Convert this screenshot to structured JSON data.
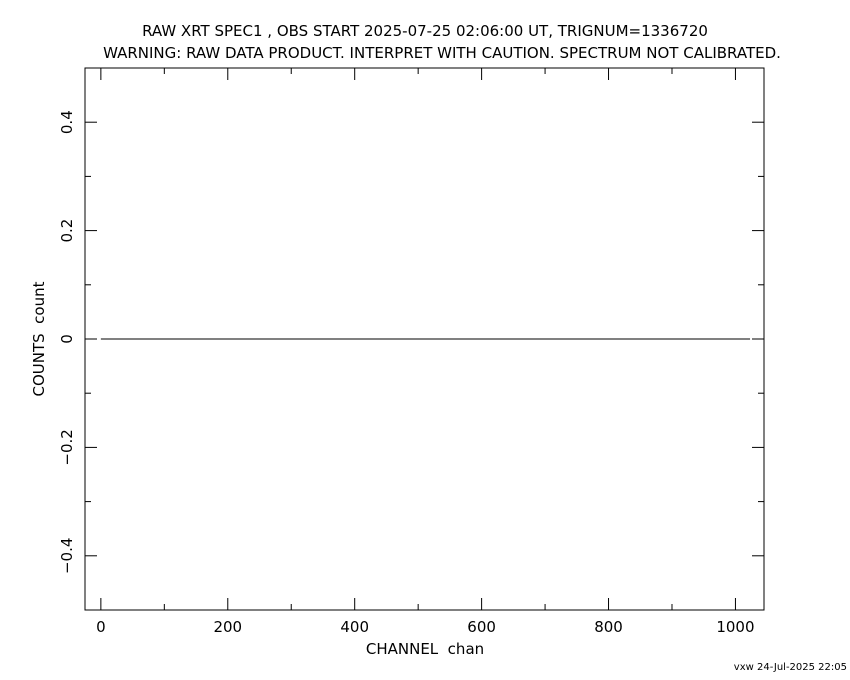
{
  "chart_data": {
    "type": "line",
    "title": "RAW XRT SPEC1 , OBS START 2025-07-25 02:06:00 UT, TRIGNUM=1336720",
    "subtitle": "WARNING: RAW DATA PRODUCT. INTERPRET WITH CAUTION. SPECTRUM NOT CALIBRATED.",
    "xlabel": "CHANNEL  chan",
    "ylabel": "COUNTS  count",
    "xlim": [
      -25,
      1045
    ],
    "ylim": [
      -0.5,
      0.5
    ],
    "xticks": [
      0,
      200,
      400,
      600,
      800,
      1000
    ],
    "xtick_labels": [
      "0",
      "200",
      "400",
      "600",
      "800",
      "1000"
    ],
    "yticks": [
      -0.4,
      -0.2,
      0,
      0.2,
      0.4
    ],
    "ytick_labels": [
      "−0.4",
      "−0.2",
      "0",
      "0.2",
      "0.4"
    ],
    "grid": false,
    "series": [
      {
        "x": [
          0,
          1023
        ],
        "y": [
          0,
          0
        ],
        "color": "#000000"
      }
    ]
  },
  "footer": "vxw 24-Jul-2025 22:05"
}
